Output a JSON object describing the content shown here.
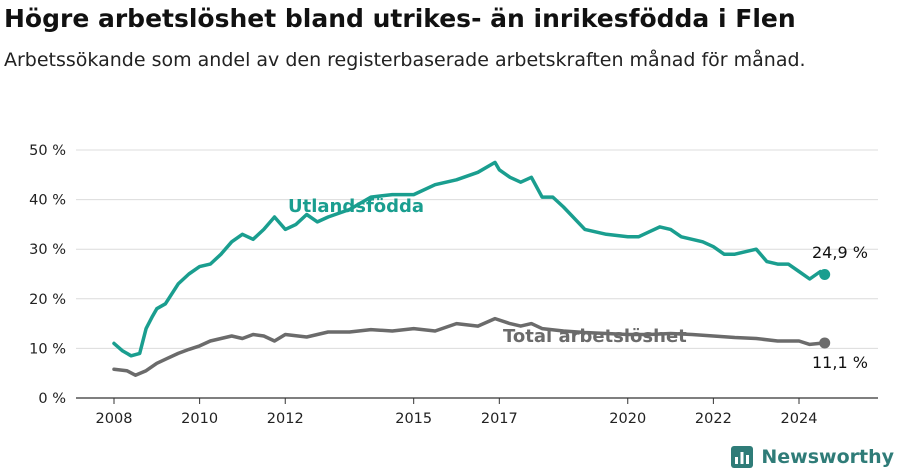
{
  "header": {
    "title": "Högre arbetslöshet bland utrikes- än inrikesfödda i Flen",
    "subtitle": "Arbetssökande som andel av den registerbaserade arbetskraften månad för månad."
  },
  "brand": {
    "name": "Newsworthy",
    "icon": "newsworthy-logo-icon",
    "color": "#2f7c78"
  },
  "chart_data": {
    "type": "line",
    "x_ticks": [
      "2008",
      "2010",
      "2012",
      "2015",
      "2017",
      "2020",
      "2022",
      "2024"
    ],
    "y_ticks": [
      "0 %",
      "10 %",
      "20 %",
      "30 %",
      "40 %",
      "50 %"
    ],
    "ylim": [
      0,
      50
    ],
    "grid": true,
    "series": [
      {
        "name": "Utlandsfödda",
        "color": "#1a9e8f",
        "end_label": "24,9 %",
        "x": [
          2008.0,
          2008.2,
          2008.4,
          2008.6,
          2008.75,
          2008.9,
          2009.0,
          2009.2,
          2009.5,
          2009.75,
          2010.0,
          2010.25,
          2010.5,
          2010.75,
          2011.0,
          2011.25,
          2011.5,
          2011.75,
          2012.0,
          2012.25,
          2012.5,
          2012.75,
          2013.0,
          2013.5,
          2014.0,
          2014.5,
          2015.0,
          2015.5,
          2016.0,
          2016.5,
          2016.9,
          2017.0,
          2017.25,
          2017.5,
          2017.75,
          2018.0,
          2018.25,
          2018.5,
          2019.0,
          2019.5,
          2020.0,
          2020.25,
          2020.5,
          2020.75,
          2021.0,
          2021.25,
          2021.5,
          2021.75,
          2022.0,
          2022.25,
          2022.5,
          2022.75,
          2023.0,
          2023.25,
          2023.5,
          2023.75,
          2024.0,
          2024.25,
          2024.5,
          2024.6
        ],
        "y": [
          11.0,
          9.5,
          8.5,
          9.0,
          14.0,
          16.5,
          18.0,
          19.0,
          23.0,
          25.0,
          26.5,
          27.0,
          29.0,
          31.5,
          33.0,
          32.0,
          34.0,
          36.5,
          34.0,
          35.0,
          37.0,
          35.5,
          36.5,
          38.0,
          40.5,
          41.0,
          41.0,
          43.0,
          44.0,
          45.5,
          47.5,
          46.0,
          44.5,
          43.5,
          44.5,
          40.5,
          40.5,
          38.5,
          34.0,
          33.0,
          32.5,
          32.5,
          33.5,
          34.5,
          34.0,
          32.5,
          32.0,
          31.5,
          30.5,
          29.0,
          29.0,
          29.5,
          30.0,
          27.5,
          27.0,
          27.0,
          25.5,
          24.0,
          25.5,
          24.9
        ]
      },
      {
        "name": "Total arbetslöshet",
        "color": "#6b6b6b",
        "end_label": "11,1 %",
        "x": [
          2008.0,
          2008.3,
          2008.5,
          2008.75,
          2009.0,
          2009.25,
          2009.5,
          2009.75,
          2010.0,
          2010.25,
          2010.5,
          2010.75,
          2011.0,
          2011.25,
          2011.5,
          2011.75,
          2012.0,
          2012.5,
          2013.0,
          2013.5,
          2014.0,
          2014.5,
          2015.0,
          2015.5,
          2016.0,
          2016.5,
          2016.9,
          2017.25,
          2017.5,
          2017.75,
          2018.0,
          2018.5,
          2019.0,
          2019.5,
          2020.0,
          2020.5,
          2021.0,
          2021.5,
          2022.0,
          2022.5,
          2023.0,
          2023.5,
          2024.0,
          2024.25,
          2024.6
        ],
        "y": [
          5.8,
          5.5,
          4.6,
          5.5,
          7.0,
          8.0,
          9.0,
          9.8,
          10.5,
          11.5,
          12.0,
          12.5,
          12.0,
          12.8,
          12.5,
          11.5,
          12.8,
          12.3,
          13.3,
          13.3,
          13.8,
          13.5,
          14.0,
          13.5,
          15.0,
          14.5,
          16.0,
          15.0,
          14.5,
          15.0,
          14.0,
          13.5,
          13.2,
          13.0,
          12.8,
          12.8,
          13.0,
          12.8,
          12.5,
          12.2,
          12.0,
          11.5,
          11.5,
          10.8,
          11.1
        ]
      }
    ]
  }
}
